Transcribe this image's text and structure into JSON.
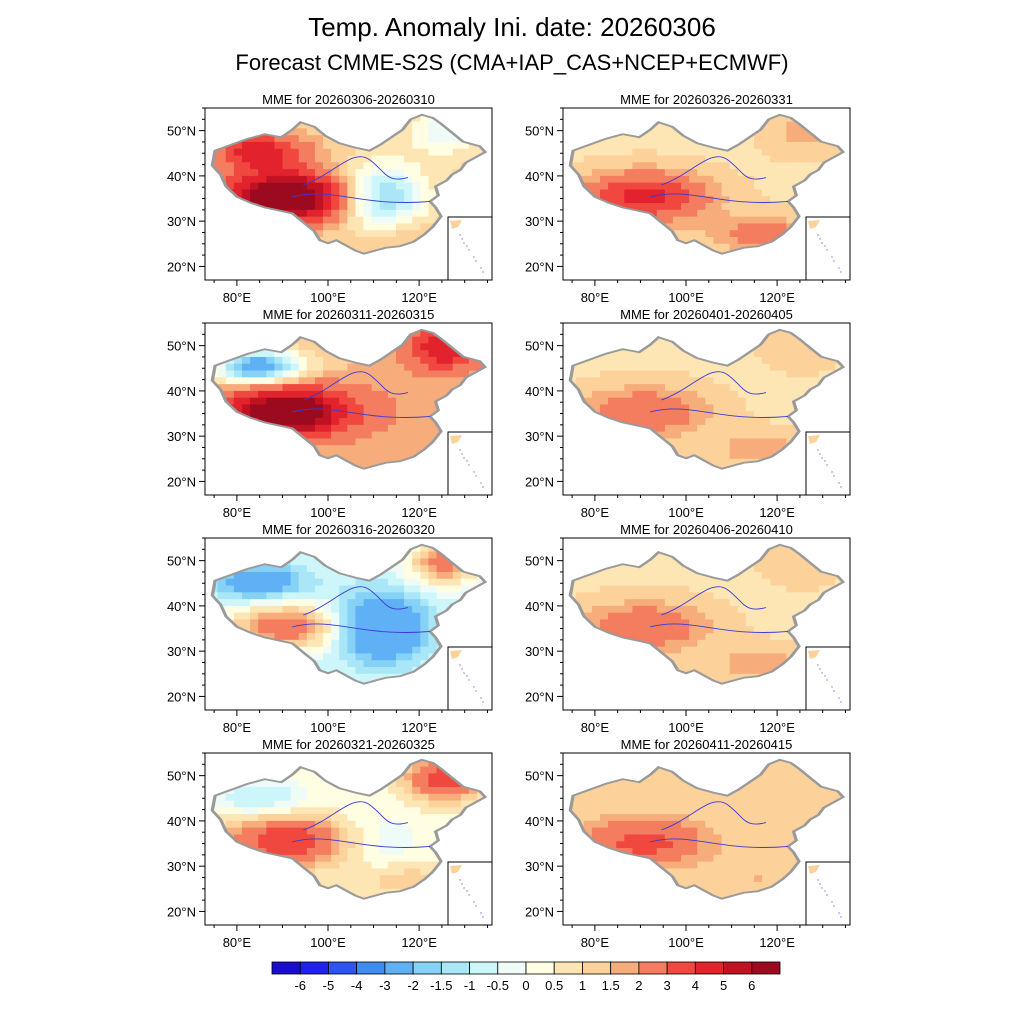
{
  "figure": {
    "title": "Temp. Anomaly Ini. date: 20260306",
    "subtitle": "Forecast CMME-S2S (CMA+IAP_CAS+NCEP+ECMWF)"
  },
  "chart_data": {
    "type": "heatmap",
    "variable": "Temperature anomaly",
    "xlabel": "",
    "ylabel": "",
    "x_ticks": [
      "80°E",
      "100°E",
      "120°E"
    ],
    "y_ticks": [
      "50°N",
      "40°N",
      "30°N",
      "20°N"
    ],
    "lon_range": [
      73,
      136
    ],
    "lat_range": [
      17,
      55
    ],
    "colorbar": {
      "levels": [
        "-6",
        "-5",
        "-4",
        "-3",
        "-2",
        "-1.5",
        "-1",
        "-0.5",
        "0",
        "0.5",
        "1",
        "1.5",
        "2",
        "3",
        "4",
        "5",
        "6"
      ],
      "colors": [
        "#1a0ccf",
        "#1f22ee",
        "#2e55f0",
        "#3f8bf0",
        "#5fb0f4",
        "#86d2f6",
        "#a9e6f7",
        "#cdf6fb",
        "#eefbf7",
        "#fffde2",
        "#fde6b4",
        "#fcd19a",
        "#f7ac7c",
        "#f47c5f",
        "#f0483e",
        "#e2222c",
        "#c11224",
        "#9c0a1f"
      ]
    },
    "panels": [
      {
        "title": "MME for 20260306-20260310",
        "column": "left",
        "row": 1,
        "pattern": "west_hot_east_cold",
        "max_anomaly": 6,
        "min_anomaly": -2
      },
      {
        "title": "MME for 20260311-20260315",
        "column": "left",
        "row": 2,
        "pattern": "warm_with_cold_xinjiang",
        "max_anomaly": 6,
        "min_anomaly": -3
      },
      {
        "title": "MME for 20260316-20260320",
        "column": "left",
        "row": 3,
        "pattern": "cold_central_warm_tibet_northeast",
        "max_anomaly": 3,
        "min_anomaly": -3
      },
      {
        "title": "MME for 20260321-20260325",
        "column": "left",
        "row": 4,
        "pattern": "warm_tibet_northeast",
        "max_anomaly": 4,
        "min_anomaly": -1
      },
      {
        "title": "MME for 20260326-20260331",
        "column": "right",
        "row": 1,
        "pattern": "warm_tibet_south",
        "max_anomaly": 4,
        "min_anomaly": 0
      },
      {
        "title": "MME for 20260401-20260405",
        "column": "right",
        "row": 2,
        "pattern": "mild_warm",
        "max_anomaly": 3,
        "min_anomaly": 0
      },
      {
        "title": "MME for 20260406-20260410",
        "column": "right",
        "row": 3,
        "pattern": "mild_warm",
        "max_anomaly": 3,
        "min_anomaly": 0
      },
      {
        "title": "MME for 20260411-20260415",
        "column": "right",
        "row": 4,
        "pattern": "warm_tibet",
        "max_anomaly": 3,
        "min_anomaly": 0
      }
    ]
  }
}
